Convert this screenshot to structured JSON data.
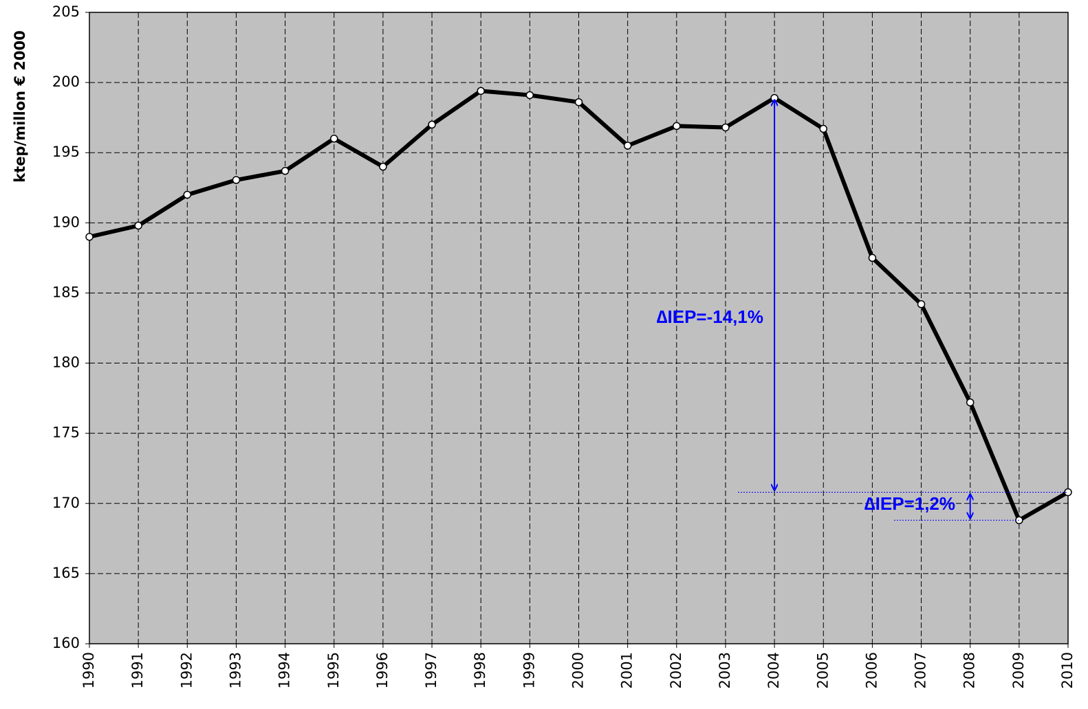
{
  "chart_data": {
    "type": "line",
    "y_label": "ktep/millon € 2000",
    "categories": [
      "1990",
      "1991",
      "1992",
      "1993",
      "1994",
      "1995",
      "1996",
      "1997",
      "1998",
      "1999",
      "2000",
      "2001",
      "2002",
      "2003",
      "2004",
      "2005",
      "2006",
      "2007",
      "2008",
      "2009",
      "2010"
    ],
    "series": [
      {
        "name": "IEP",
        "color": "#000000",
        "values": [
          189.0,
          189.8,
          192.0,
          193.05,
          193.7,
          196.0,
          194.0,
          197.0,
          199.4,
          199.1,
          198.6,
          195.5,
          196.9,
          196.8,
          198.9,
          196.7,
          187.5,
          184.2,
          177.2,
          168.8,
          170.8
        ]
      }
    ],
    "ylim": [
      160,
      205
    ],
    "yticks": [
      160,
      165,
      170,
      175,
      180,
      185,
      190,
      195,
      200,
      205
    ],
    "grid": true,
    "plot_background": "#c0c0c0",
    "annotations": [
      {
        "text": "∆IEP=-14,1%",
        "color": "#0000ff",
        "from_index": 14,
        "to_index": 20
      },
      {
        "text": "∆IEP=1,2%",
        "color": "#0000ff",
        "from_index": 20,
        "to_index": 19
      }
    ]
  }
}
